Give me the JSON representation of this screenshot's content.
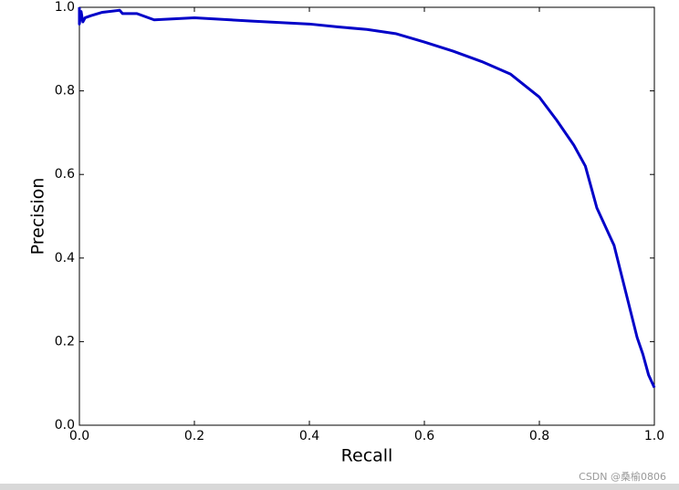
{
  "chart_data": {
    "type": "line",
    "xlabel": "Recall",
    "ylabel": "Precision",
    "x": [
      0,
      0,
      0.003,
      0.006,
      0.01,
      0.02,
      0.04,
      0.07,
      0.075,
      0.1,
      0.13,
      0.2,
      0.3,
      0.4,
      0.45,
      0.5,
      0.55,
      0.6,
      0.65,
      0.7,
      0.75,
      0.8,
      0.83,
      0.86,
      0.88,
      0.9,
      0.92,
      0.93,
      0.95,
      0.97,
      0.98,
      0.99,
      1.0
    ],
    "values": [
      1.0,
      0.96,
      0.99,
      0.965,
      0.975,
      0.98,
      0.988,
      0.993,
      0.985,
      0.985,
      0.97,
      0.975,
      0.967,
      0.96,
      0.953,
      0.947,
      0.937,
      0.917,
      0.895,
      0.87,
      0.84,
      0.785,
      0.73,
      0.67,
      0.62,
      0.52,
      0.46,
      0.43,
      0.32,
      0.21,
      0.17,
      0.12,
      0.09
    ],
    "color": "#0000c8",
    "xlim": [
      0,
      1
    ],
    "ylim": [
      0,
      1
    ],
    "xticks": [
      {
        "value": 0,
        "label": "0.0"
      },
      0.2,
      0.4,
      0.6,
      0.8,
      {
        "value": 1,
        "label": "1.0"
      }
    ],
    "yticks": [
      {
        "value": 0,
        "label": "0.0"
      },
      0.2,
      0.4,
      0.6,
      0.8,
      {
        "value": 1,
        "label": "1.0"
      }
    ]
  },
  "watermark": "CSDN @桑榆0806"
}
